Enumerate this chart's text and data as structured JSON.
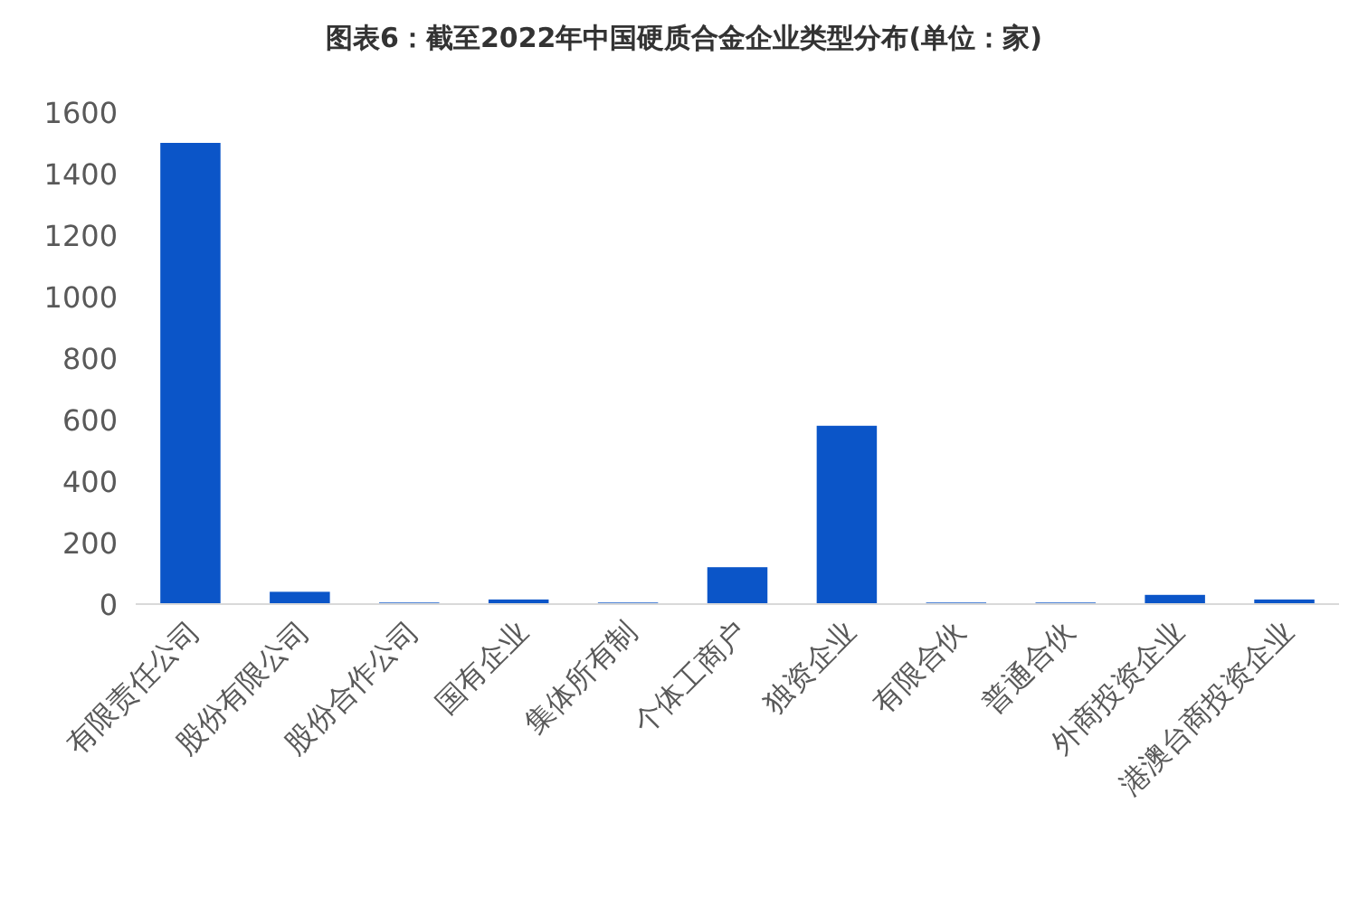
{
  "chart_data": {
    "type": "bar",
    "title": "图表6：截至2022年中国硬质合金企业类型分布(单位：家)",
    "categories": [
      "有限责任公司",
      "股份有限公司",
      "股份合作公司",
      "国有企业",
      "集体所有制",
      "个体工商户",
      "独资企业",
      "有限合伙",
      "普通合伙",
      "外商投资企业",
      "港澳台商投资企业"
    ],
    "values": [
      1500,
      40,
      5,
      15,
      5,
      120,
      580,
      5,
      5,
      30,
      15
    ],
    "color": "#0b55c8",
    "ylim": [
      0,
      1600
    ],
    "yticks": [
      0,
      200,
      400,
      600,
      800,
      1000,
      1200,
      1400,
      1600
    ],
    "grid": false
  }
}
